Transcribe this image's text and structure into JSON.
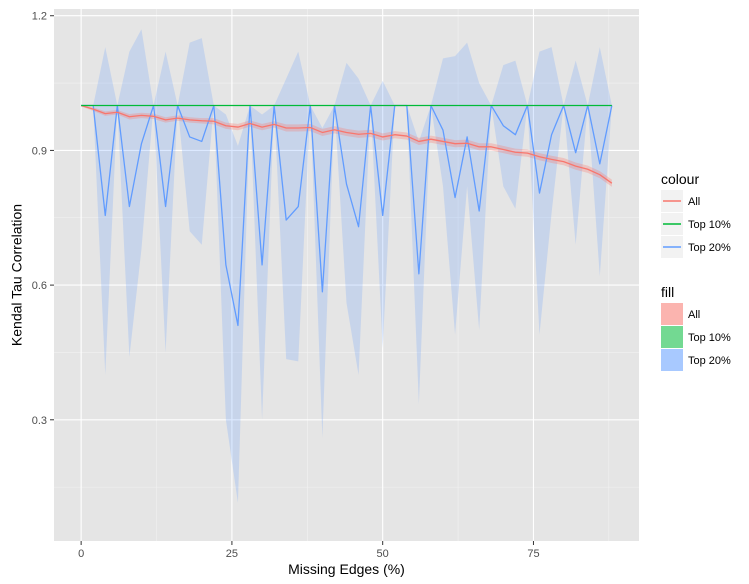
{
  "chart_data": {
    "type": "line",
    "xlabel": "Missing Edges (%)",
    "ylabel": "Kendal Tau Correlation",
    "xlim": [
      -4.5,
      92.5
    ],
    "ylim": [
      0.03,
      1.215
    ],
    "x_ticks": [
      0,
      25,
      50,
      75
    ],
    "x_tick_labels": [
      "0",
      "25",
      "50",
      "75"
    ],
    "y_ticks": [
      0.3,
      0.6,
      0.9,
      1.2
    ],
    "y_tick_labels": [
      "0.3",
      "0.6",
      "0.9",
      "1.2"
    ],
    "grid": true,
    "panel_background": "#e5e5e5",
    "legend_position": "right",
    "legends": [
      {
        "title": "colour",
        "items": [
          {
            "label": "All",
            "color": "#f8766d"
          },
          {
            "label": "Top 10%",
            "color": "#00ba38"
          },
          {
            "label": "Top 20%",
            "color": "#619cff"
          }
        ]
      },
      {
        "title": "fill",
        "items": [
          {
            "label": "All",
            "color": "#f8766d"
          },
          {
            "label": "Top 10%",
            "color": "#00ba38"
          },
          {
            "label": "Top 20%",
            "color": "#619cff"
          }
        ]
      }
    ],
    "series": [
      {
        "name": "Top 20%",
        "color": "#619cff",
        "ribbon_opacity": 0.22,
        "x": [
          0,
          2,
          4,
          6,
          8,
          10,
          12,
          14,
          16,
          18,
          20,
          22,
          24,
          26,
          28,
          30,
          32,
          34,
          36,
          38,
          40,
          42,
          44,
          46,
          48,
          50,
          52,
          54,
          56,
          58,
          60,
          62,
          64,
          66,
          68,
          70,
          72,
          74,
          76,
          78,
          80,
          82,
          84,
          86,
          88
        ],
        "values": [
          1.0,
          1.0,
          0.755,
          1.0,
          0.775,
          0.915,
          1.0,
          0.775,
          1.0,
          0.93,
          0.92,
          1.0,
          0.645,
          0.51,
          1.0,
          0.645,
          1.0,
          0.745,
          0.775,
          1.0,
          0.585,
          1.0,
          0.825,
          0.73,
          1.0,
          0.755,
          1.0,
          1.0,
          0.625,
          1.0,
          0.945,
          0.795,
          0.93,
          0.765,
          1.0,
          0.955,
          0.935,
          1.0,
          0.805,
          0.935,
          1.0,
          0.895,
          1.0,
          0.87,
          1.0
        ],
        "lower": [
          1.0,
          1.0,
          0.4,
          1.0,
          0.44,
          0.68,
          1.0,
          0.45,
          1.0,
          0.72,
          0.69,
          1.0,
          0.3,
          0.115,
          1.0,
          0.3,
          1.0,
          0.435,
          0.43,
          1.0,
          0.26,
          1.0,
          0.56,
          0.4,
          1.0,
          0.46,
          1.0,
          1.0,
          0.335,
          1.0,
          0.82,
          0.49,
          0.82,
          0.5,
          1.0,
          0.82,
          0.77,
          1.0,
          0.49,
          0.76,
          1.0,
          0.69,
          1.0,
          0.62,
          1.0
        ],
        "upper": [
          1.0,
          1.0,
          1.13,
          1.0,
          1.12,
          1.17,
          1.0,
          1.12,
          1.0,
          1.14,
          1.15,
          1.0,
          0.98,
          0.91,
          1.0,
          0.98,
          1.0,
          1.06,
          1.12,
          1.0,
          0.95,
          1.0,
          1.095,
          1.06,
          1.0,
          1.055,
          1.0,
          1.0,
          0.92,
          1.0,
          1.105,
          1.11,
          1.14,
          1.05,
          1.0,
          1.09,
          1.1,
          1.0,
          1.12,
          1.13,
          1.0,
          1.1,
          1.0,
          1.13,
          1.0
        ]
      },
      {
        "name": "All",
        "color": "#f8766d",
        "ribbon_opacity": 0.3,
        "x": [
          0,
          2,
          4,
          6,
          8,
          10,
          12,
          14,
          16,
          18,
          20,
          22,
          24,
          26,
          28,
          30,
          32,
          34,
          36,
          38,
          40,
          42,
          44,
          46,
          48,
          50,
          52,
          54,
          56,
          58,
          60,
          62,
          64,
          66,
          68,
          70,
          72,
          74,
          76,
          78,
          80,
          82,
          84,
          86,
          88
        ],
        "values": [
          1.0,
          0.992,
          0.982,
          0.985,
          0.975,
          0.978,
          0.976,
          0.968,
          0.972,
          0.968,
          0.966,
          0.965,
          0.955,
          0.952,
          0.96,
          0.952,
          0.958,
          0.95,
          0.95,
          0.951,
          0.94,
          0.946,
          0.94,
          0.936,
          0.938,
          0.93,
          0.935,
          0.932,
          0.92,
          0.925,
          0.92,
          0.915,
          0.916,
          0.908,
          0.908,
          0.902,
          0.896,
          0.894,
          0.886,
          0.88,
          0.875,
          0.865,
          0.858,
          0.846,
          0.827
        ],
        "lower": [
          0.998,
          0.988,
          0.977,
          0.98,
          0.969,
          0.972,
          0.97,
          0.962,
          0.966,
          0.962,
          0.96,
          0.958,
          0.948,
          0.945,
          0.953,
          0.945,
          0.951,
          0.942,
          0.942,
          0.943,
          0.932,
          0.938,
          0.932,
          0.928,
          0.93,
          0.922,
          0.927,
          0.924,
          0.912,
          0.917,
          0.912,
          0.907,
          0.908,
          0.9,
          0.9,
          0.894,
          0.888,
          0.886,
          0.878,
          0.872,
          0.867,
          0.857,
          0.85,
          0.838,
          0.819
        ],
        "upper": [
          1.002,
          0.996,
          0.987,
          0.99,
          0.981,
          0.984,
          0.982,
          0.974,
          0.978,
          0.974,
          0.972,
          0.972,
          0.962,
          0.959,
          0.967,
          0.959,
          0.965,
          0.958,
          0.958,
          0.959,
          0.948,
          0.954,
          0.948,
          0.944,
          0.946,
          0.938,
          0.943,
          0.94,
          0.928,
          0.933,
          0.928,
          0.923,
          0.924,
          0.916,
          0.916,
          0.91,
          0.904,
          0.902,
          0.894,
          0.888,
          0.883,
          0.873,
          0.866,
          0.854,
          0.835
        ]
      },
      {
        "name": "Top 10%",
        "color": "#00ba38",
        "ribbon_opacity": 0.3,
        "x": [
          0,
          88
        ],
        "values": [
          1.0,
          1.0
        ],
        "lower": [
          1.0,
          1.0
        ],
        "upper": [
          1.0,
          1.0
        ]
      }
    ]
  }
}
